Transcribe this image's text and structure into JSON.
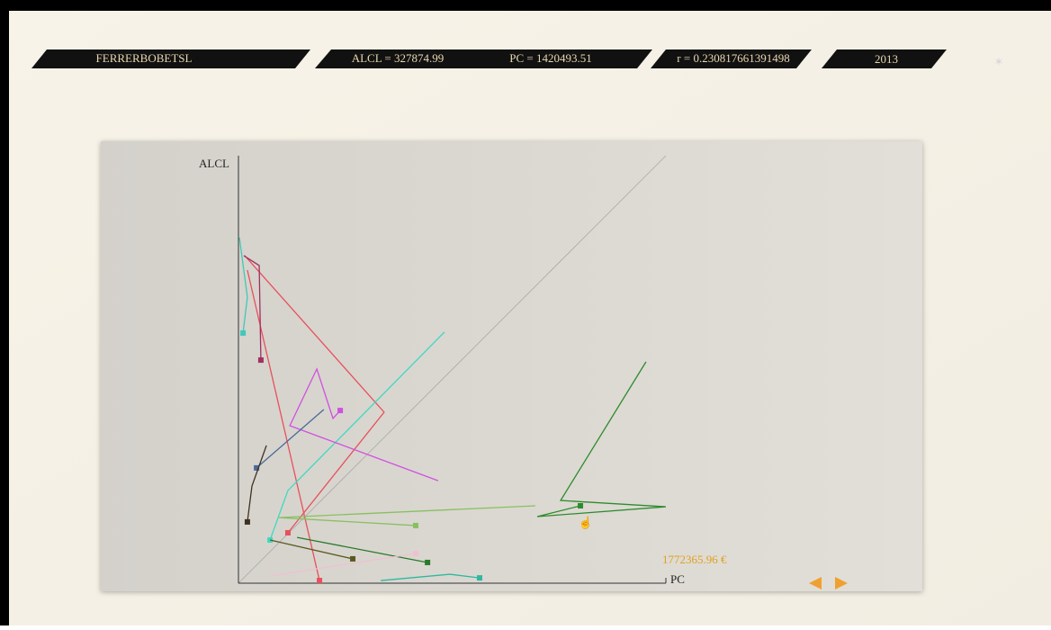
{
  "header": {
    "company": "FERRERBOBETSL",
    "alcl": "ALCL = 327874.99",
    "pc": "PC = 1420493.51",
    "r": "r = 0.230817661391498",
    "year": "2013"
  },
  "chart_data": {
    "type": "line",
    "ylabel": "ALCL",
    "xlabel": "PC",
    "xlim": [
      0,
      1772365.96
    ],
    "ylim": [
      0,
      1772365.96
    ],
    "xmax_label": "1772365.96 €",
    "series": [
      {
        "color": "#2e8b2e",
        "x": [
          1690000,
          1336000,
          1772000,
          1239000,
          1418000
        ],
        "values": [
          918000,
          343000,
          317000,
          276000,
          321000
        ]
      },
      {
        "color": "#e8505a",
        "x": [
          26000,
          604000,
          205000
        ],
        "values": [
          1358000,
          709000,
          209000
        ]
      },
      {
        "color": "#e8505a",
        "x": [
          37000,
          336000
        ],
        "values": [
          1298000,
          11000
        ]
      },
      {
        "color": "#40d8c0",
        "x": [
          854000,
          205000,
          131000
        ],
        "values": [
          1041000,
          384000,
          179000
        ]
      },
      {
        "color": "#40c8b8",
        "x": [
          4000,
          37000,
          19000
        ],
        "values": [
          1433000,
          1186000,
          1037000
        ]
      },
      {
        "color": "#d050e0",
        "x": [
          828000,
          213000,
          325000,
          392000,
          422000
        ],
        "values": [
          425000,
          653000,
          888000,
          683000,
          716000
        ]
      },
      {
        "color": "#a03060",
        "x": [
          22000,
          86000,
          93000
        ],
        "values": [
          1358000,
          1317000,
          925000
        ]
      },
      {
        "color": "#4a6a9a",
        "x": [
          354000,
          75000
        ],
        "values": [
          720000,
          478000
        ]
      },
      {
        "color": "#88c060",
        "x": [
          1231000,
          168000,
          735000
        ],
        "values": [
          321000,
          272000,
          239000
        ]
      },
      {
        "color": "#5a5a20",
        "x": [
          131000,
          474000
        ],
        "values": [
          179000,
          101000
        ]
      },
      {
        "color": "#30b8a0",
        "x": [
          590000,
          877000,
          1000000
        ],
        "values": [
          11000,
          37000,
          22000
        ]
      },
      {
        "color": "#403020",
        "x": [
          116000,
          56000,
          37000
        ],
        "values": [
          571000,
          403000,
          254000
        ]
      },
      {
        "color": "#2a7a2a",
        "x": [
          243000,
          784000
        ],
        "values": [
          190000,
          86000
        ]
      },
      {
        "color": "#f0c0d0",
        "x": [
          131000,
          735000
        ],
        "values": [
          30000,
          123000
        ]
      }
    ]
  }
}
